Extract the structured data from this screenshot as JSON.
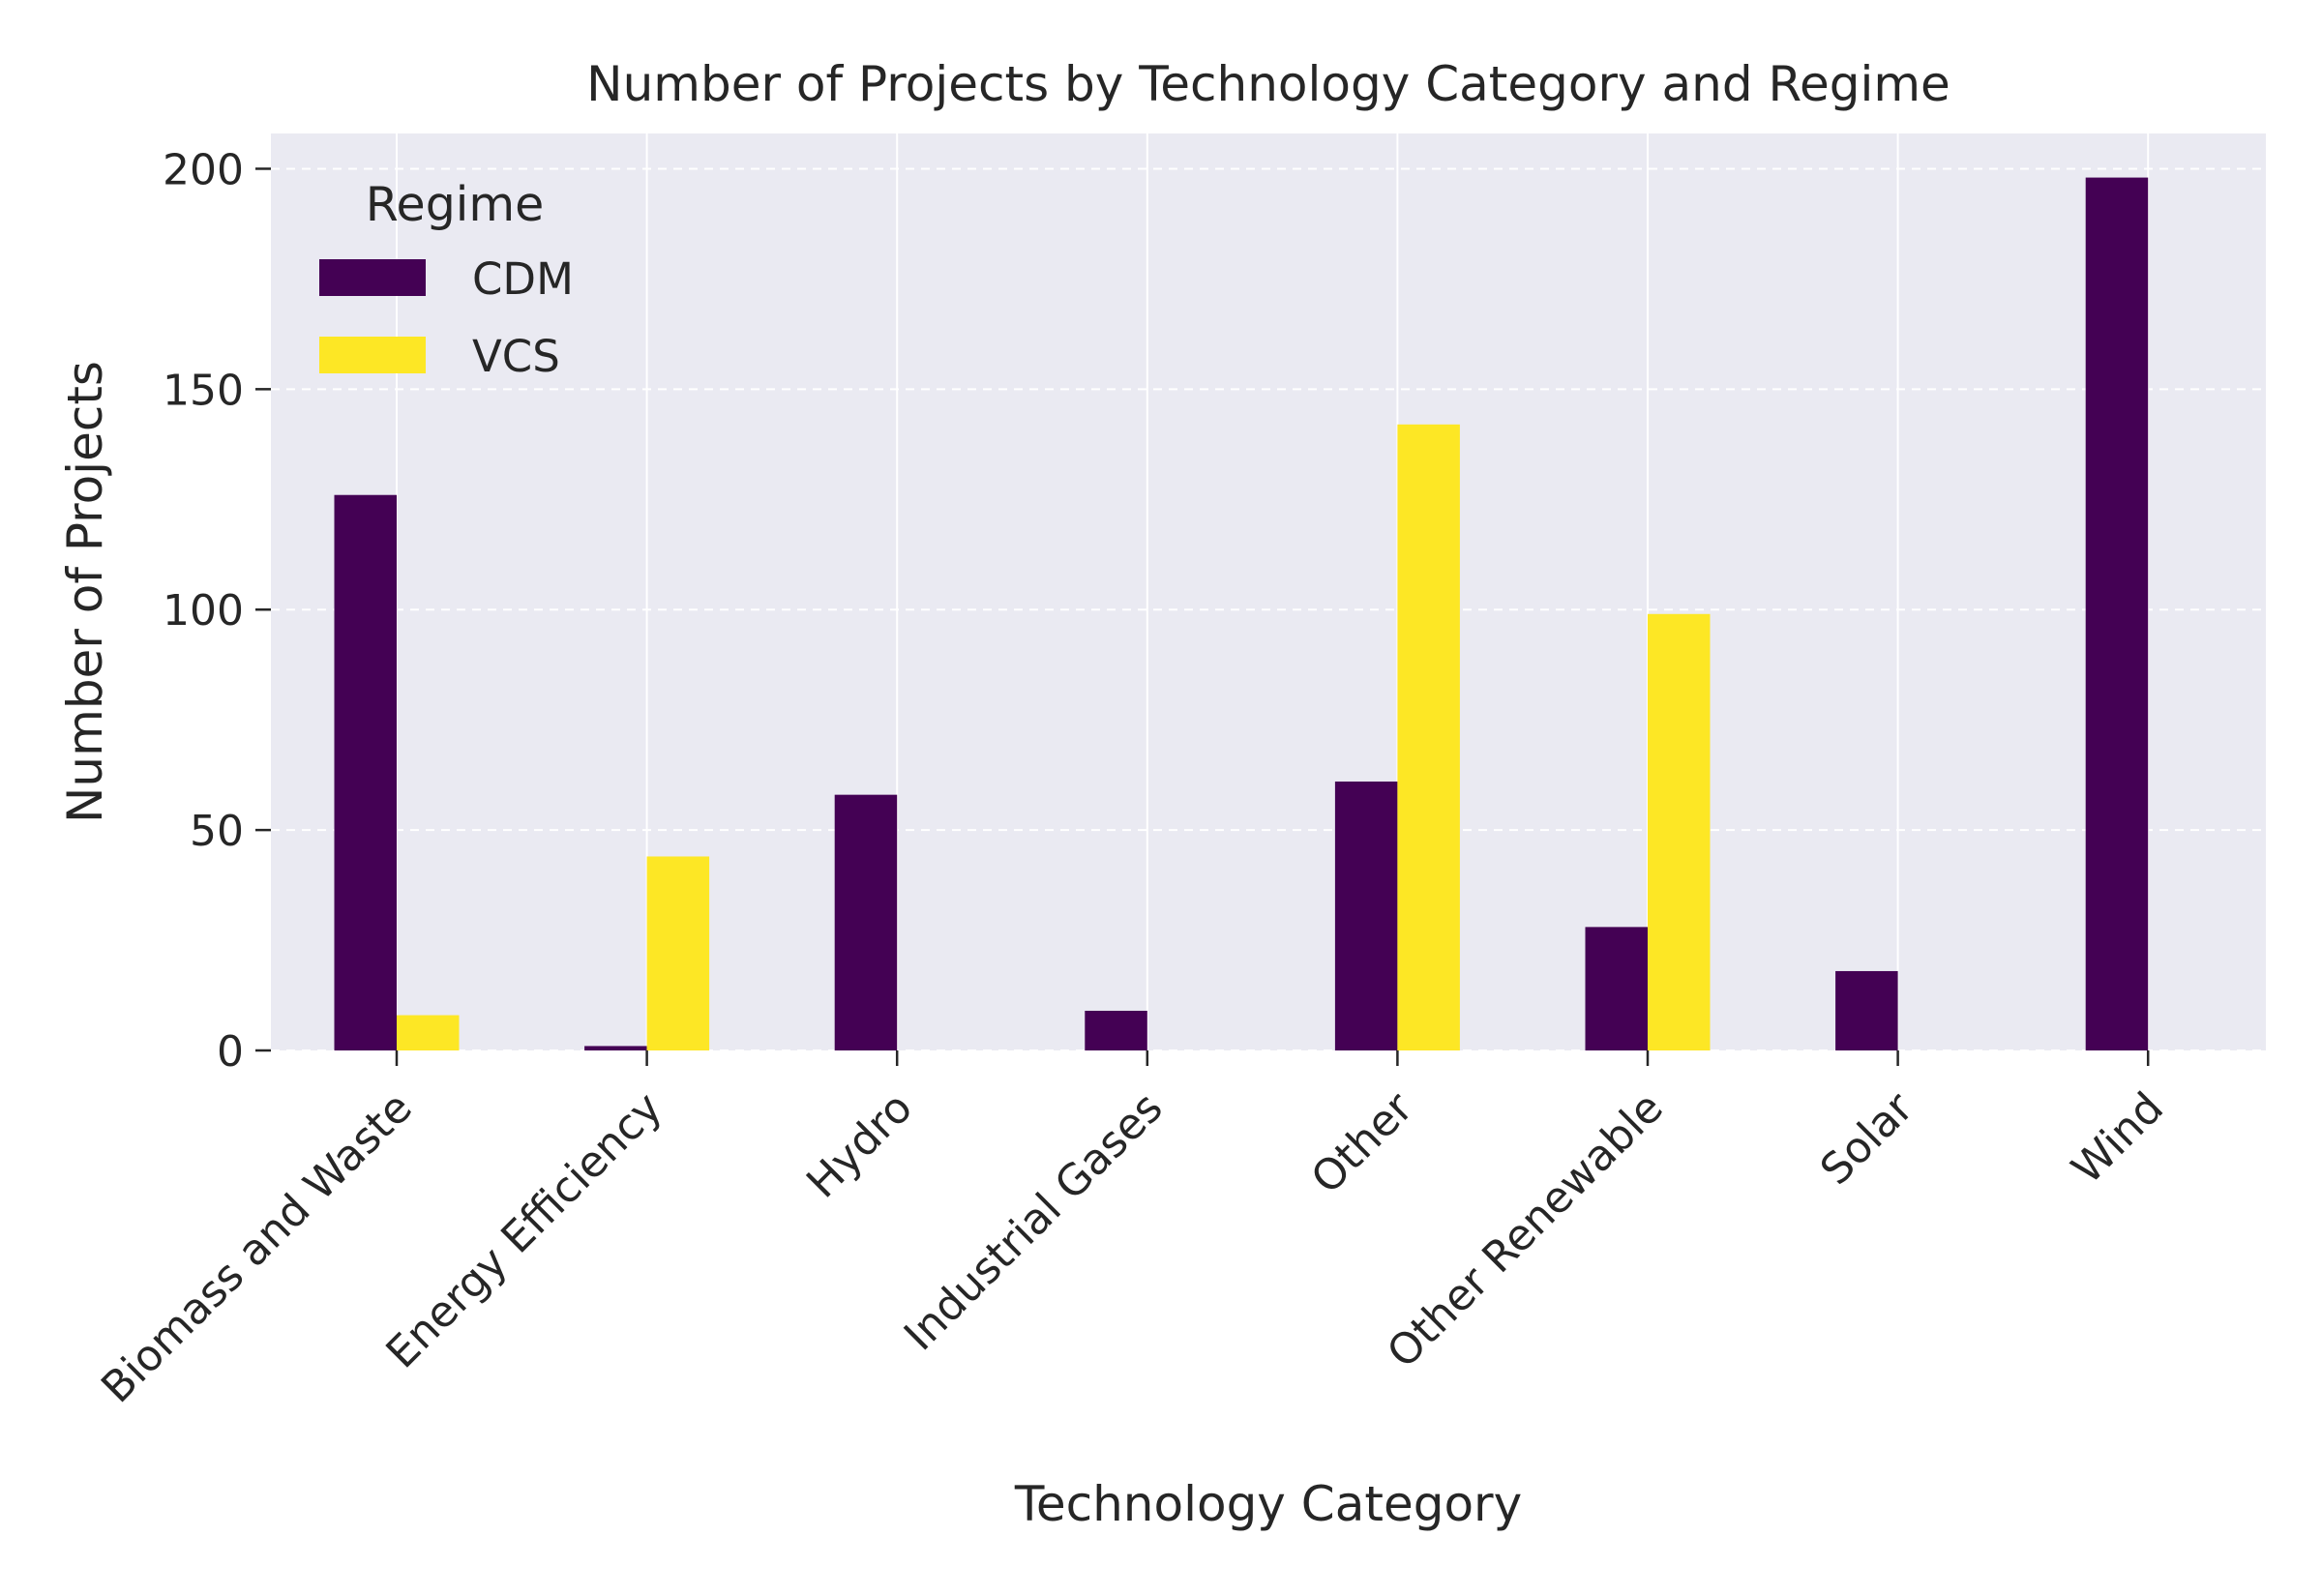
{
  "chart_data": {
    "type": "bar",
    "title": "Number of Projects by Technology Category and Regime",
    "xlabel": "Technology Category",
    "ylabel": "Number of Projects",
    "categories": [
      "Biomass and Waste",
      "Energy Efficiency",
      "Hydro",
      "Industrial Gases",
      "Other",
      "Other Renewable",
      "Solar",
      "Wind"
    ],
    "series": [
      {
        "name": "CDM",
        "color": "#440154",
        "values": [
          126,
          1,
          58,
          9,
          61,
          28,
          18,
          198
        ]
      },
      {
        "name": "VCS",
        "color": "#fde725",
        "values": [
          8,
          44,
          0,
          0,
          142,
          99,
          0,
          0
        ]
      }
    ],
    "ylim": [
      0,
      208
    ],
    "yticks": [
      0,
      50,
      100,
      150,
      200
    ],
    "grid": true,
    "legend": {
      "title": "Regime",
      "placement": "top-left"
    },
    "background": "#eaeaf2"
  }
}
